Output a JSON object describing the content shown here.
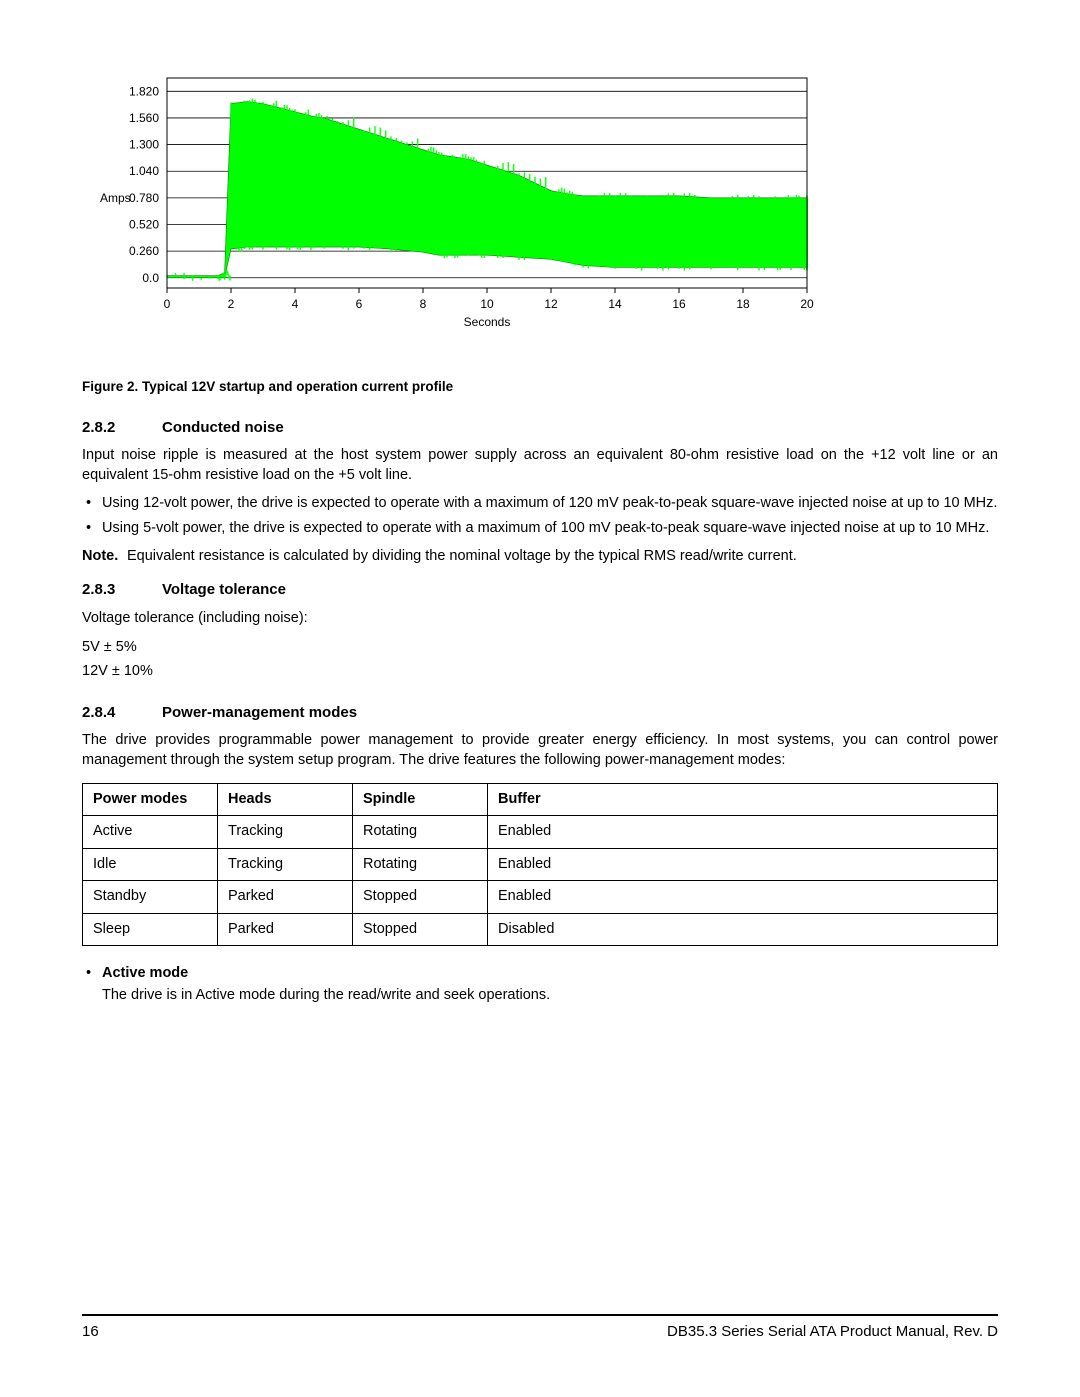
{
  "chart": {
    "type": "area",
    "y_label": "Amps",
    "x_label": "Seconds",
    "y_ticks": [
      "1.820",
      "1.560",
      "1.300",
      "1.040",
      "0.780",
      "0.520",
      "0.260",
      "0.0"
    ],
    "x_ticks": [
      "0",
      "2",
      "4",
      "6",
      "8",
      "10",
      "12",
      "14",
      "16",
      "18",
      "20"
    ],
    "series_color": "#00ff00",
    "line_color": "#008000",
    "grid_color": "#000000",
    "background_color": "#ffffff",
    "y_range": [
      -0.1,
      1.95
    ],
    "x_range": [
      0,
      20
    ],
    "envelope_top": [
      0.02,
      0.02,
      0.05,
      1.7,
      1.72,
      1.7,
      1.66,
      1.62,
      1.58,
      1.55,
      1.45,
      1.35,
      1.25,
      1.2,
      1.18,
      1.15,
      1.1,
      1.0,
      0.85,
      0.82,
      0.8,
      0.8,
      0.8,
      0.8,
      0.78,
      0.78,
      0.78,
      0.78,
      0.78
    ],
    "envelope_bottom": [
      0.0,
      0.0,
      0.0,
      0.28,
      0.3,
      0.3,
      0.3,
      0.3,
      0.3,
      0.3,
      0.3,
      0.28,
      0.25,
      0.22,
      0.22,
      0.22,
      0.22,
      0.2,
      0.18,
      0.15,
      0.12,
      0.1,
      0.1,
      0.1,
      0.1,
      0.1,
      0.1,
      0.1,
      0.1
    ],
    "envelope_x": [
      0.0,
      1.6,
      1.8,
      2.0,
      2.5,
      3.0,
      3.5,
      4.0,
      4.5,
      5.0,
      6.0,
      7.0,
      8.0,
      8.5,
      9.0,
      9.5,
      10.0,
      11.0,
      12.0,
      12.5,
      13.0,
      14.0,
      15.0,
      16.0,
      17.0,
      18.0,
      19.0,
      19.5,
      20.0
    ]
  },
  "caption": "Figure 2. Typical 12V startup and operation current profile",
  "sec282": {
    "num": "2.8.2",
    "title": "Conducted noise"
  },
  "p282": "Input noise ripple is measured at the host system power supply across an equivalent 80-ohm resistive load on the +12 volt line or an equivalent 15-ohm resistive load on the +5 volt line.",
  "b282_1": "Using 12-volt power, the drive is expected to operate with a maximum of 120 mV peak-to-peak square-wave injected noise at up to 10 MHz.",
  "b282_2": "Using 5-volt power, the drive is expected to operate with a maximum of 100 mV peak-to-peak square-wave injected noise at up to 10 MHz.",
  "note_lbl": "Note.",
  "note_txt": "Equivalent resistance is calculated by dividing the nominal voltage by the typical RMS read/write current.",
  "sec283": {
    "num": "2.8.3",
    "title": "Voltage tolerance"
  },
  "p283": "Voltage tolerance (including noise):",
  "tol1": "5V ± 5%",
  "tol2": "12V ± 10%",
  "sec284": {
    "num": "2.8.4",
    "title": "Power-management modes"
  },
  "p284": "The drive provides programmable power management to provide greater energy efficiency. In most systems, you can control power management through the system setup program. The drive features the following power-management modes:",
  "table": {
    "columns": [
      "Power modes",
      "Heads",
      "Spindle",
      "Buffer"
    ],
    "rows": [
      [
        "Active",
        "Tracking",
        "Rotating",
        "Enabled"
      ],
      [
        "Idle",
        "Tracking",
        "Rotating",
        "Enabled"
      ],
      [
        "Standby",
        "Parked",
        "Stopped",
        "Enabled"
      ],
      [
        "Sleep",
        "Parked",
        "Stopped",
        "Disabled"
      ]
    ]
  },
  "mode_title": "Active mode",
  "mode_desc": "The drive is in Active mode during the read/write and seek operations.",
  "footer": {
    "page": "16",
    "doc": "DB35.3 Series Serial ATA Product Manual, Rev. D"
  }
}
